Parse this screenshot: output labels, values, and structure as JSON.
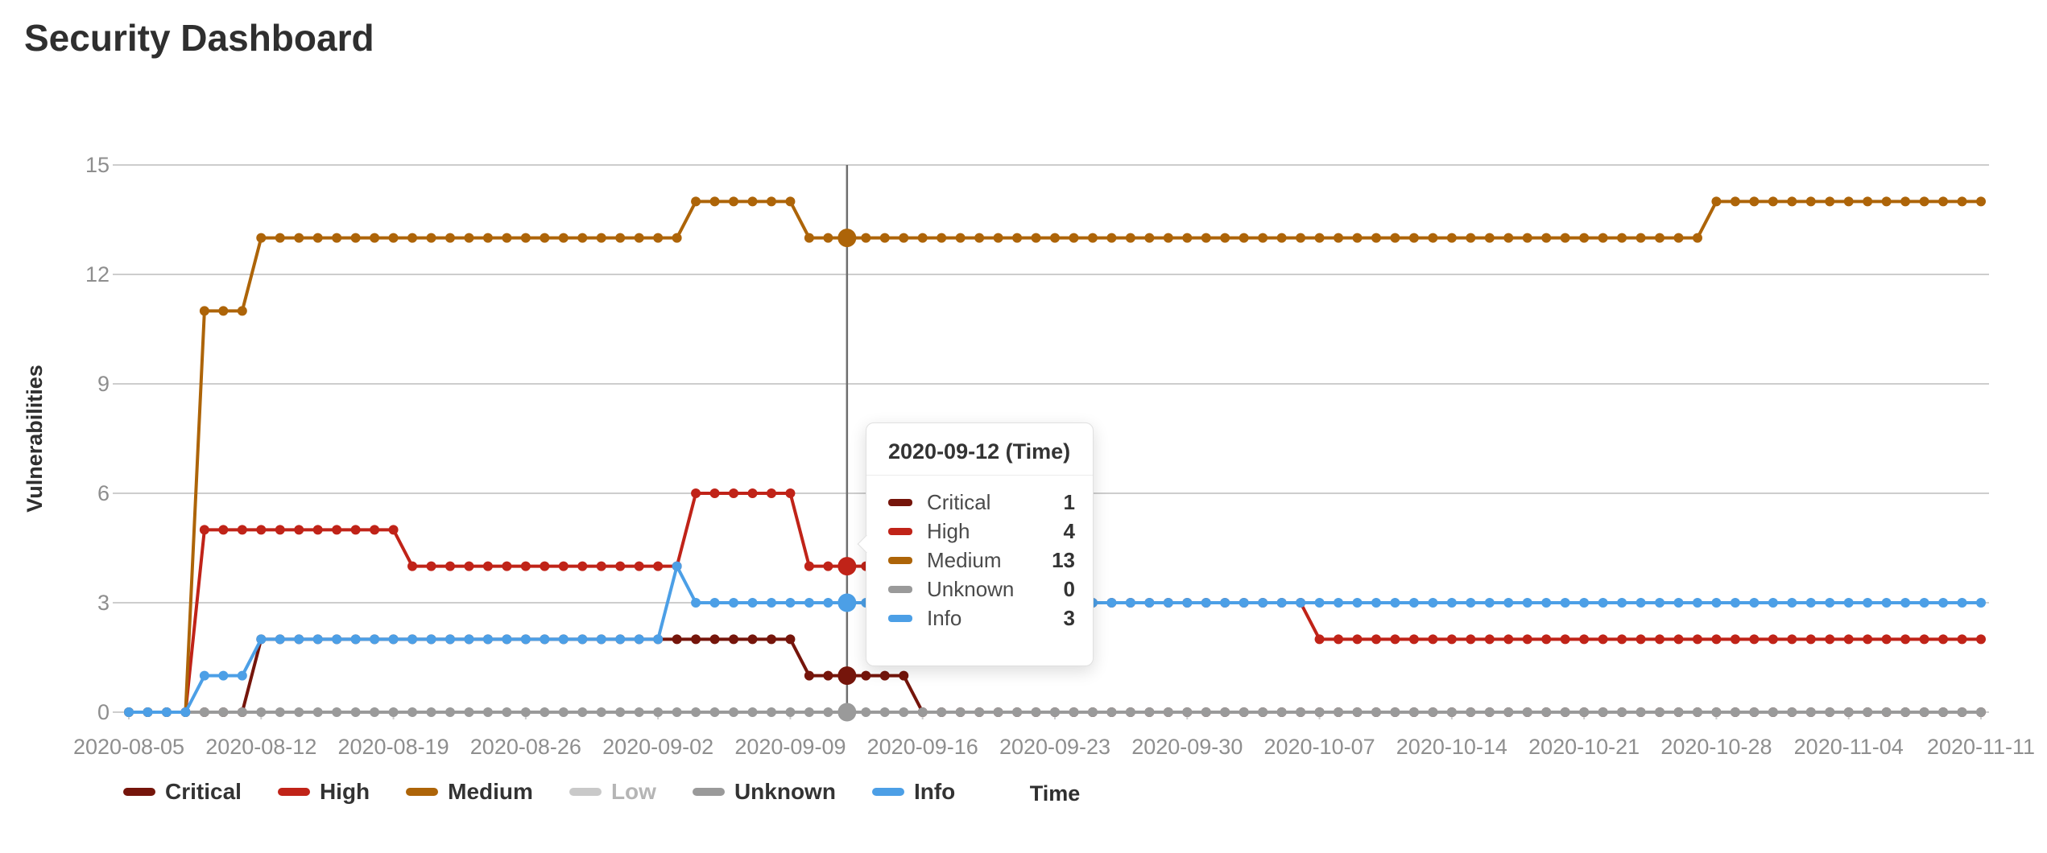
{
  "header": {
    "title": "Security Dashboard"
  },
  "colors": {
    "critical": "#75150B",
    "high": "#C02318",
    "medium": "#AD6408",
    "low": "#C9C9C9",
    "unknown": "#9A9A9A",
    "info": "#4C9FE6",
    "grid": "#CDCDCD",
    "axis_label": "#8E8E8E",
    "hover_line": "#6E6E6E",
    "text_dark": "#2F2F2F"
  },
  "chart_data": {
    "type": "line",
    "title": "Security Dashboard",
    "xlabel": "Time",
    "ylabel": "Vulnerabilities",
    "ylim": [
      0,
      15
    ],
    "yticks": [
      0,
      3,
      6,
      9,
      12,
      15
    ],
    "grid": true,
    "legend_position": "bottom-left",
    "x_points": 99,
    "x_start_date": "2020-08-05",
    "x_end_date": "2020-11-11",
    "x_tick_every_days": 7,
    "x_tick_labels": [
      "2020-08-05",
      "2020-08-12",
      "2020-08-19",
      "2020-08-26",
      "2020-09-02",
      "2020-09-09",
      "2020-09-16",
      "2020-09-23",
      "2020-09-30",
      "2020-10-07",
      "2020-10-14",
      "2020-10-21",
      "2020-10-28",
      "2020-11-04",
      "2020-11-11"
    ],
    "highlight_index": 38,
    "highlight_date": "2020-09-12",
    "series": [
      {
        "name": "Critical",
        "color": "#75150B",
        "selected": true,
        "values": [
          0,
          0,
          0,
          0,
          0,
          0,
          0,
          2,
          2,
          2,
          2,
          2,
          2,
          2,
          2,
          2,
          2,
          2,
          2,
          2,
          2,
          2,
          2,
          2,
          2,
          2,
          2,
          2,
          2,
          2,
          2,
          2,
          2,
          2,
          2,
          2,
          1,
          1,
          1,
          1,
          1,
          1,
          0,
          0,
          0,
          0,
          0,
          0,
          0,
          0,
          0,
          0,
          0,
          0,
          0,
          0,
          0,
          0,
          0,
          0,
          0,
          0,
          0,
          0,
          0,
          0,
          0,
          0,
          0,
          0,
          0,
          0,
          0,
          0,
          0,
          0,
          0,
          0,
          0,
          0,
          0,
          0,
          0,
          0,
          0,
          0,
          0,
          0,
          0,
          0,
          0,
          0,
          0,
          0,
          0,
          0,
          0,
          0,
          0
        ]
      },
      {
        "name": "High",
        "color": "#C02318",
        "selected": true,
        "values": [
          0,
          0,
          0,
          0,
          5,
          5,
          5,
          5,
          5,
          5,
          5,
          5,
          5,
          5,
          5,
          4,
          4,
          4,
          4,
          4,
          4,
          4,
          4,
          4,
          4,
          4,
          4,
          4,
          4,
          4,
          6,
          6,
          6,
          6,
          6,
          6,
          4,
          4,
          4,
          4,
          3,
          3,
          3,
          3,
          3,
          3,
          3,
          3,
          3,
          3,
          3,
          3,
          3,
          3,
          3,
          3,
          3,
          3,
          3,
          3,
          3,
          3,
          3,
          2,
          2,
          2,
          2,
          2,
          2,
          2,
          2,
          2,
          2,
          2,
          2,
          2,
          2,
          2,
          2,
          2,
          2,
          2,
          2,
          2,
          2,
          2,
          2,
          2,
          2,
          2,
          2,
          2,
          2,
          2,
          2,
          2,
          2,
          2,
          2
        ]
      },
      {
        "name": "Medium",
        "color": "#AD6408",
        "selected": true,
        "values": [
          0,
          0,
          0,
          0,
          11,
          11,
          11,
          13,
          13,
          13,
          13,
          13,
          13,
          13,
          13,
          13,
          13,
          13,
          13,
          13,
          13,
          13,
          13,
          13,
          13,
          13,
          13,
          13,
          13,
          13,
          14,
          14,
          14,
          14,
          14,
          14,
          13,
          13,
          13,
          13,
          13,
          13,
          13,
          13,
          13,
          13,
          13,
          13,
          13,
          13,
          13,
          13,
          13,
          13,
          13,
          13,
          13,
          13,
          13,
          13,
          13,
          13,
          13,
          13,
          13,
          13,
          13,
          13,
          13,
          13,
          13,
          13,
          13,
          13,
          13,
          13,
          13,
          13,
          13,
          13,
          13,
          13,
          13,
          13,
          14,
          14,
          14,
          14,
          14,
          14,
          14,
          14,
          14,
          14,
          14,
          14,
          14,
          14,
          14
        ]
      },
      {
        "name": "Low",
        "color": "#C9C9C9",
        "selected": false,
        "values": []
      },
      {
        "name": "Unknown",
        "color": "#9A9A9A",
        "selected": true,
        "values": [
          0,
          0,
          0,
          0,
          0,
          0,
          0,
          0,
          0,
          0,
          0,
          0,
          0,
          0,
          0,
          0,
          0,
          0,
          0,
          0,
          0,
          0,
          0,
          0,
          0,
          0,
          0,
          0,
          0,
          0,
          0,
          0,
          0,
          0,
          0,
          0,
          0,
          0,
          0,
          0,
          0,
          0,
          0,
          0,
          0,
          0,
          0,
          0,
          0,
          0,
          0,
          0,
          0,
          0,
          0,
          0,
          0,
          0,
          0,
          0,
          0,
          0,
          0,
          0,
          0,
          0,
          0,
          0,
          0,
          0,
          0,
          0,
          0,
          0,
          0,
          0,
          0,
          0,
          0,
          0,
          0,
          0,
          0,
          0,
          0,
          0,
          0,
          0,
          0,
          0,
          0,
          0,
          0,
          0,
          0,
          0,
          0,
          0,
          0
        ]
      },
      {
        "name": "Info",
        "color": "#4C9FE6",
        "selected": true,
        "values": [
          0,
          0,
          0,
          0,
          1,
          1,
          1,
          2,
          2,
          2,
          2,
          2,
          2,
          2,
          2,
          2,
          2,
          2,
          2,
          2,
          2,
          2,
          2,
          2,
          2,
          2,
          2,
          2,
          2,
          4,
          3,
          3,
          3,
          3,
          3,
          3,
          3,
          3,
          3,
          3,
          3,
          3,
          3,
          3,
          3,
          3,
          3,
          3,
          3,
          3,
          3,
          3,
          3,
          3,
          3,
          3,
          3,
          3,
          3,
          3,
          3,
          3,
          3,
          3,
          3,
          3,
          3,
          3,
          3,
          3,
          3,
          3,
          3,
          3,
          3,
          3,
          3,
          3,
          3,
          3,
          3,
          3,
          3,
          3,
          3,
          3,
          3,
          3,
          3,
          3,
          3,
          3,
          3,
          3,
          3,
          3,
          3,
          3,
          3
        ]
      }
    ]
  },
  "legend": {
    "items": [
      {
        "label": "Critical",
        "color": "#75150B",
        "selected": true
      },
      {
        "label": "High",
        "color": "#C02318",
        "selected": true
      },
      {
        "label": "Medium",
        "color": "#AD6408",
        "selected": true
      },
      {
        "label": "Low",
        "color": "#C9C9C9",
        "selected": false
      },
      {
        "label": "Unknown",
        "color": "#9A9A9A",
        "selected": true
      },
      {
        "label": "Info",
        "color": "#4C9FE6",
        "selected": true
      }
    ]
  },
  "tooltip": {
    "title": "2020-09-12 (Time)",
    "rows": [
      {
        "label": "Critical",
        "value": "1",
        "color": "#75150B"
      },
      {
        "label": "High",
        "value": "4",
        "color": "#C02318"
      },
      {
        "label": "Medium",
        "value": "13",
        "color": "#AD6408"
      },
      {
        "label": "Unknown",
        "value": "0",
        "color": "#9A9A9A"
      },
      {
        "label": "Info",
        "value": "3",
        "color": "#4C9FE6"
      }
    ]
  }
}
